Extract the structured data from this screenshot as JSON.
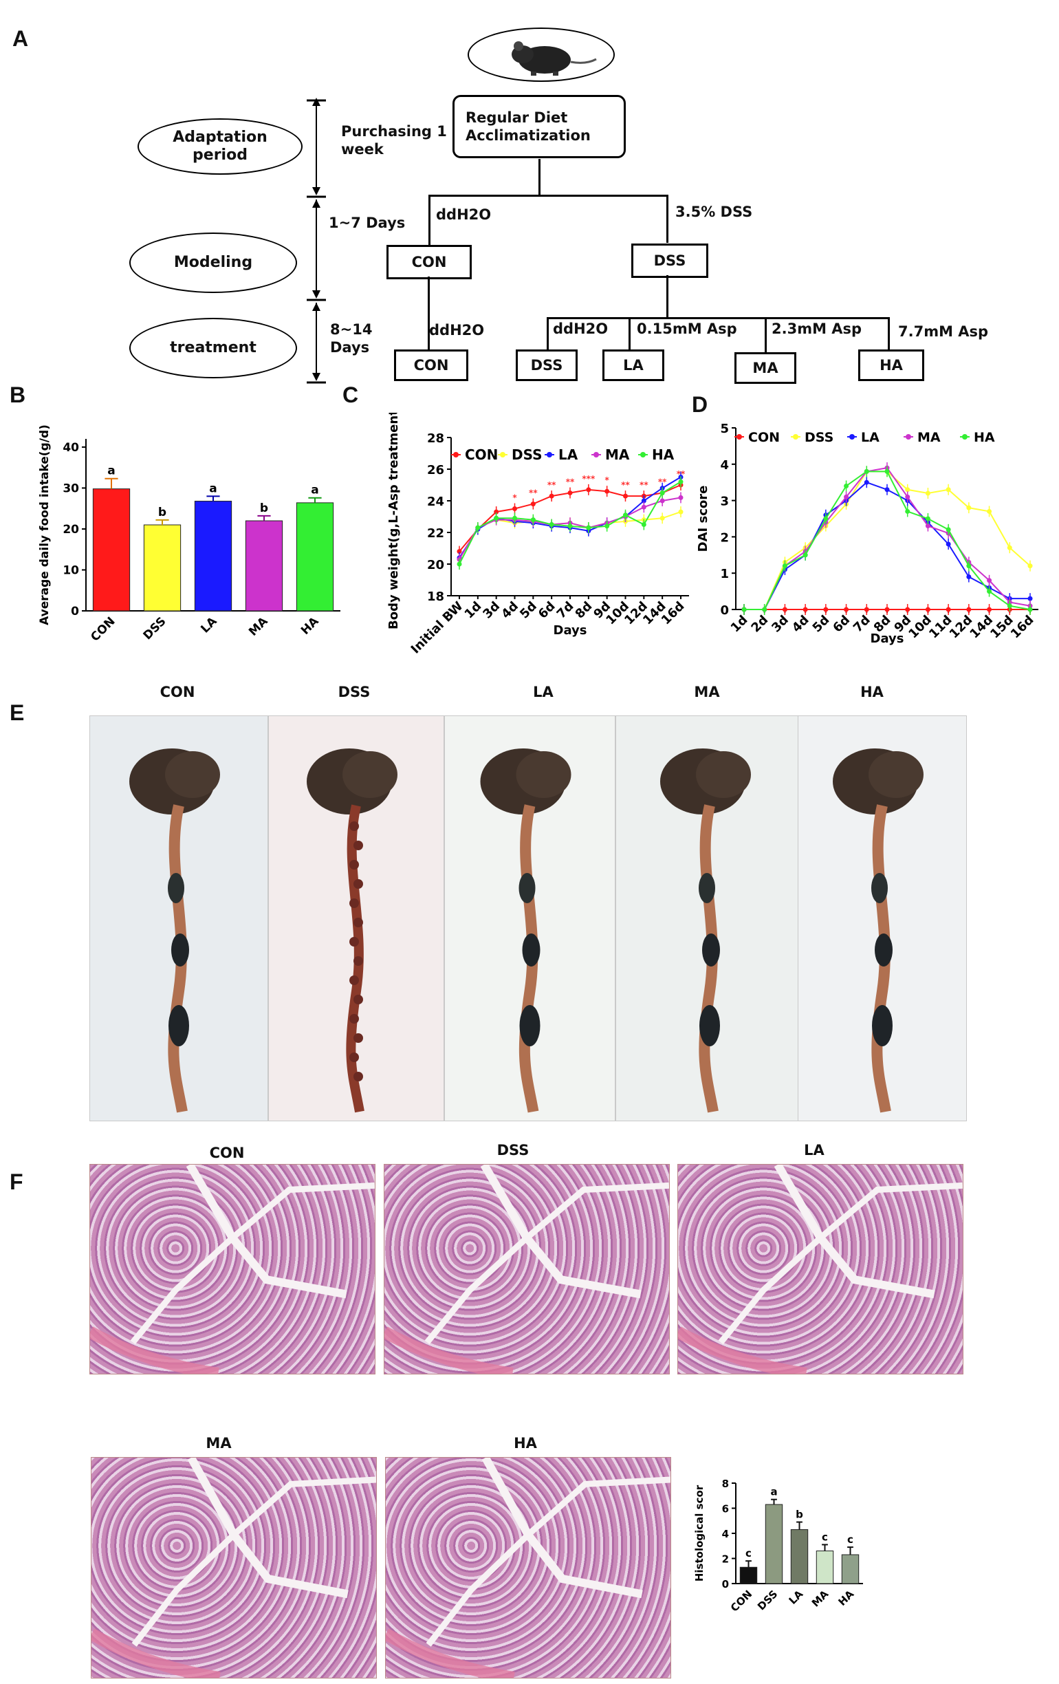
{
  "panels": {
    "A": "A",
    "B": "B",
    "C": "C",
    "D": "D",
    "E": "E",
    "F": "F"
  },
  "flow": {
    "adaptation": "Adaptation period",
    "modeling": "Modeling",
    "treatment": "treatment",
    "purchasing": "Purchasing 1 week",
    "days_1_7": "1~7 Days",
    "days_8_14": "8~14 Days",
    "regular_diet": "Regular Diet Acclimatization",
    "ddh2o_model": "ddH2O",
    "dss_label": "3.5% DSS",
    "con_box": "CON",
    "dss_box": "DSS",
    "ddh2o_treat": "ddH2O",
    "con_box2": "CON",
    "ddh2o_branch": "ddH2O",
    "asp_low": "0.15mM Asp",
    "asp_mid": "2.3mM Asp",
    "asp_high": "7.7mM Asp",
    "dss_box2": "DSS",
    "la_box": "LA",
    "ma_box": "MA",
    "ha_box": "HA"
  },
  "colors": {
    "CON": "#ff1a1a",
    "DSS": "#ffff33",
    "LA": "#1a1aff",
    "MA": "#cc33cc",
    "HA": "#33ee33"
  },
  "chart_data": [
    {
      "type": "bar",
      "panel": "B",
      "ylabel": "Average daily food intake(g/d)",
      "categories": [
        "CON",
        "DSS",
        "LA",
        "MA",
        "HA"
      ],
      "values": [
        29.8,
        21.0,
        26.8,
        22.0,
        26.4
      ],
      "errors": [
        2.5,
        1.2,
        1.2,
        1.2,
        1.2
      ],
      "letters": [
        "a",
        "b",
        "a",
        "b",
        "a"
      ],
      "yticks": [
        0,
        10,
        20,
        30,
        40
      ],
      "ylim": [
        0,
        42
      ]
    },
    {
      "type": "line",
      "panel": "C",
      "ylabel": "Body weight(g,L-Asp treatment)",
      "xlabel": "Days",
      "x": [
        "Initial BW",
        "1d",
        "3d",
        "4d",
        "5d",
        "6d",
        "7d",
        "8d",
        "9d",
        "10d",
        "12d",
        "14d",
        "16d"
      ],
      "yticks": [
        18,
        20,
        22,
        24,
        26,
        28
      ],
      "ylim": [
        18,
        28
      ],
      "series": [
        {
          "name": "CON",
          "values": [
            20.8,
            22.2,
            23.3,
            23.5,
            23.8,
            24.3,
            24.5,
            24.7,
            24.6,
            24.3,
            24.3,
            24.5,
            25.0
          ]
        },
        {
          "name": "DSS",
          "values": [
            20.3,
            22.3,
            22.8,
            22.6,
            22.7,
            22.5,
            22.6,
            22.3,
            22.6,
            22.7,
            22.8,
            22.9,
            23.3
          ]
        },
        {
          "name": "LA",
          "values": [
            20.4,
            22.2,
            22.9,
            22.7,
            22.6,
            22.4,
            22.3,
            22.1,
            22.6,
            23.0,
            24.0,
            24.8,
            25.5
          ]
        },
        {
          "name": "MA",
          "values": [
            20.3,
            22.3,
            22.8,
            22.8,
            22.7,
            22.5,
            22.6,
            22.3,
            22.6,
            23.0,
            23.6,
            24.0,
            24.2
          ]
        },
        {
          "name": "HA",
          "values": [
            20.0,
            22.3,
            22.9,
            22.9,
            22.8,
            22.5,
            22.4,
            22.3,
            22.4,
            23.1,
            22.5,
            24.5,
            25.2
          ]
        }
      ],
      "sig": [
        "*",
        "**",
        "**",
        "**",
        "***",
        "*",
        "**",
        "**",
        "**",
        "**"
      ]
    },
    {
      "type": "line",
      "panel": "D",
      "ylabel": "DAI score",
      "xlabel": "Days",
      "x": [
        "1d",
        "2d",
        "3d",
        "4d",
        "5d",
        "6d",
        "7d",
        "8d",
        "9d",
        "10d",
        "11d",
        "12d",
        "14d",
        "15d",
        "16d"
      ],
      "yticks": [
        0,
        1,
        2,
        3,
        4,
        5
      ],
      "ylim": [
        0,
        5
      ],
      "series": [
        {
          "name": "CON",
          "values": [
            0,
            0,
            0,
            0,
            0,
            0,
            0,
            0,
            0,
            0,
            0,
            0,
            0,
            0,
            0
          ]
        },
        {
          "name": "DSS",
          "values": [
            0,
            0,
            1.3,
            1.7,
            2.3,
            2.9,
            3.8,
            3.8,
            3.3,
            3.2,
            3.3,
            2.8,
            2.7,
            1.7,
            1.2
          ]
        },
        {
          "name": "LA",
          "values": [
            0,
            0,
            1.1,
            1.5,
            2.6,
            3.0,
            3.5,
            3.3,
            3.0,
            2.4,
            1.8,
            0.9,
            0.6,
            0.3,
            0.3
          ]
        },
        {
          "name": "MA",
          "values": [
            0,
            0,
            1.2,
            1.6,
            2.4,
            3.1,
            3.8,
            3.9,
            3.1,
            2.3,
            2.1,
            1.3,
            0.8,
            0.2,
            0.1
          ]
        },
        {
          "name": "HA",
          "values": [
            0,
            0,
            1.2,
            1.5,
            2.5,
            3.4,
            3.8,
            3.8,
            2.7,
            2.5,
            2.2,
            1.2,
            0.5,
            0.1,
            0.0
          ]
        }
      ]
    },
    {
      "type": "bar",
      "panel": "F",
      "ylabel": "Histological scor",
      "categories": [
        "CON",
        "DSS",
        "LA",
        "MA",
        "HA"
      ],
      "values": [
        1.3,
        6.3,
        4.3,
        2.6,
        2.3
      ],
      "errors": [
        0.5,
        0.4,
        0.6,
        0.5,
        0.6
      ],
      "letters": [
        "c",
        "a",
        "b",
        "c",
        "c"
      ],
      "yticks": [
        0,
        2,
        4,
        6,
        8
      ],
      "ylim": [
        0,
        8
      ]
    }
  ],
  "photos_E": [
    "CON",
    "DSS",
    "LA",
    "MA",
    "HA"
  ],
  "histology_F": [
    "CON",
    "DSS",
    "LA",
    "MA",
    "HA"
  ]
}
